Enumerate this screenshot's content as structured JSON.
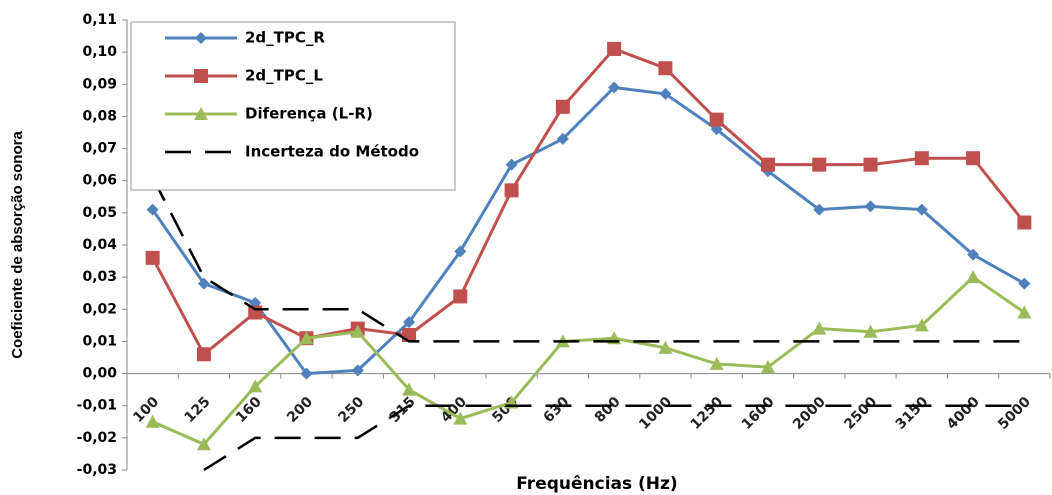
{
  "chart_data": {
    "type": "line",
    "x_label": "Frequências (Hz)",
    "y_label": "Coeficiente de absorção sonora",
    "categories": [
      "100",
      "125",
      "160",
      "200",
      "250",
      "315",
      "400",
      "500",
      "630",
      "800",
      "1000",
      "1250",
      "1600",
      "2000",
      "2500",
      "3150",
      "4000",
      "5000"
    ],
    "series": [
      {
        "name": "2d_TPC_R",
        "color": "#4f81bd",
        "marker": "diamond",
        "values": [
          0.051,
          0.028,
          0.022,
          0.0,
          0.001,
          0.016,
          0.038,
          0.065,
          0.073,
          0.089,
          0.087,
          0.076,
          0.063,
          0.051,
          0.052,
          0.051,
          0.037,
          0.028
        ]
      },
      {
        "name": "2d_TPC_L",
        "color": "#c0504d",
        "marker": "square",
        "values": [
          0.036,
          0.006,
          0.019,
          0.011,
          0.014,
          0.012,
          0.024,
          0.057,
          0.083,
          0.101,
          0.095,
          0.079,
          0.065,
          0.065,
          0.065,
          0.067,
          0.067,
          0.047
        ]
      },
      {
        "name": "Diferença (L-R)",
        "color": "#9bbb59",
        "marker": "triangle",
        "values": [
          -0.015,
          -0.022,
          -0.004,
          0.011,
          0.013,
          -0.005,
          -0.014,
          -0.009,
          0.01,
          0.011,
          0.008,
          0.003,
          0.002,
          0.014,
          0.013,
          0.015,
          0.03,
          0.019
        ]
      },
      {
        "name": "Incerteza do Método",
        "color": "#000000",
        "marker": "dash",
        "values": [
          0.061,
          0.03,
          0.02,
          0.02,
          0.02,
          0.01,
          0.01,
          0.01,
          0.01,
          0.01,
          0.01,
          0.01,
          0.01,
          0.01,
          0.01,
          0.01,
          0.01,
          0.01
        ],
        "lower": [
          null,
          -0.03,
          -0.02,
          -0.02,
          -0.02,
          -0.01,
          -0.01,
          -0.01,
          -0.01,
          -0.01,
          -0.01,
          -0.01,
          -0.01,
          -0.01,
          -0.01,
          -0.01,
          -0.01,
          -0.01
        ]
      }
    ],
    "ylim": [
      -0.03,
      0.11
    ],
    "yticks": [
      {
        "value": -0.03,
        "label": "-0,03"
      },
      {
        "value": -0.02,
        "label": "-0,02"
      },
      {
        "value": -0.01,
        "label": "-0,01"
      },
      {
        "value": 0,
        "label": "0,00"
      },
      {
        "value": 0.01,
        "label": "0,01"
      },
      {
        "value": 0.02,
        "label": "0,02"
      },
      {
        "value": 0.03,
        "label": "0,03"
      },
      {
        "value": 0.04,
        "label": "0,04"
      },
      {
        "value": 0.05,
        "label": "0,05"
      },
      {
        "value": 0.06,
        "label": "0,06"
      },
      {
        "value": 0.07,
        "label": "0,07"
      },
      {
        "value": 0.08,
        "label": "0,08"
      },
      {
        "value": 0.09,
        "label": "0,09"
      },
      {
        "value": 0.1,
        "label": "0,10"
      },
      {
        "value": 0.11,
        "label": "0,11"
      }
    ],
    "grid": false,
    "legend": "top-left"
  }
}
